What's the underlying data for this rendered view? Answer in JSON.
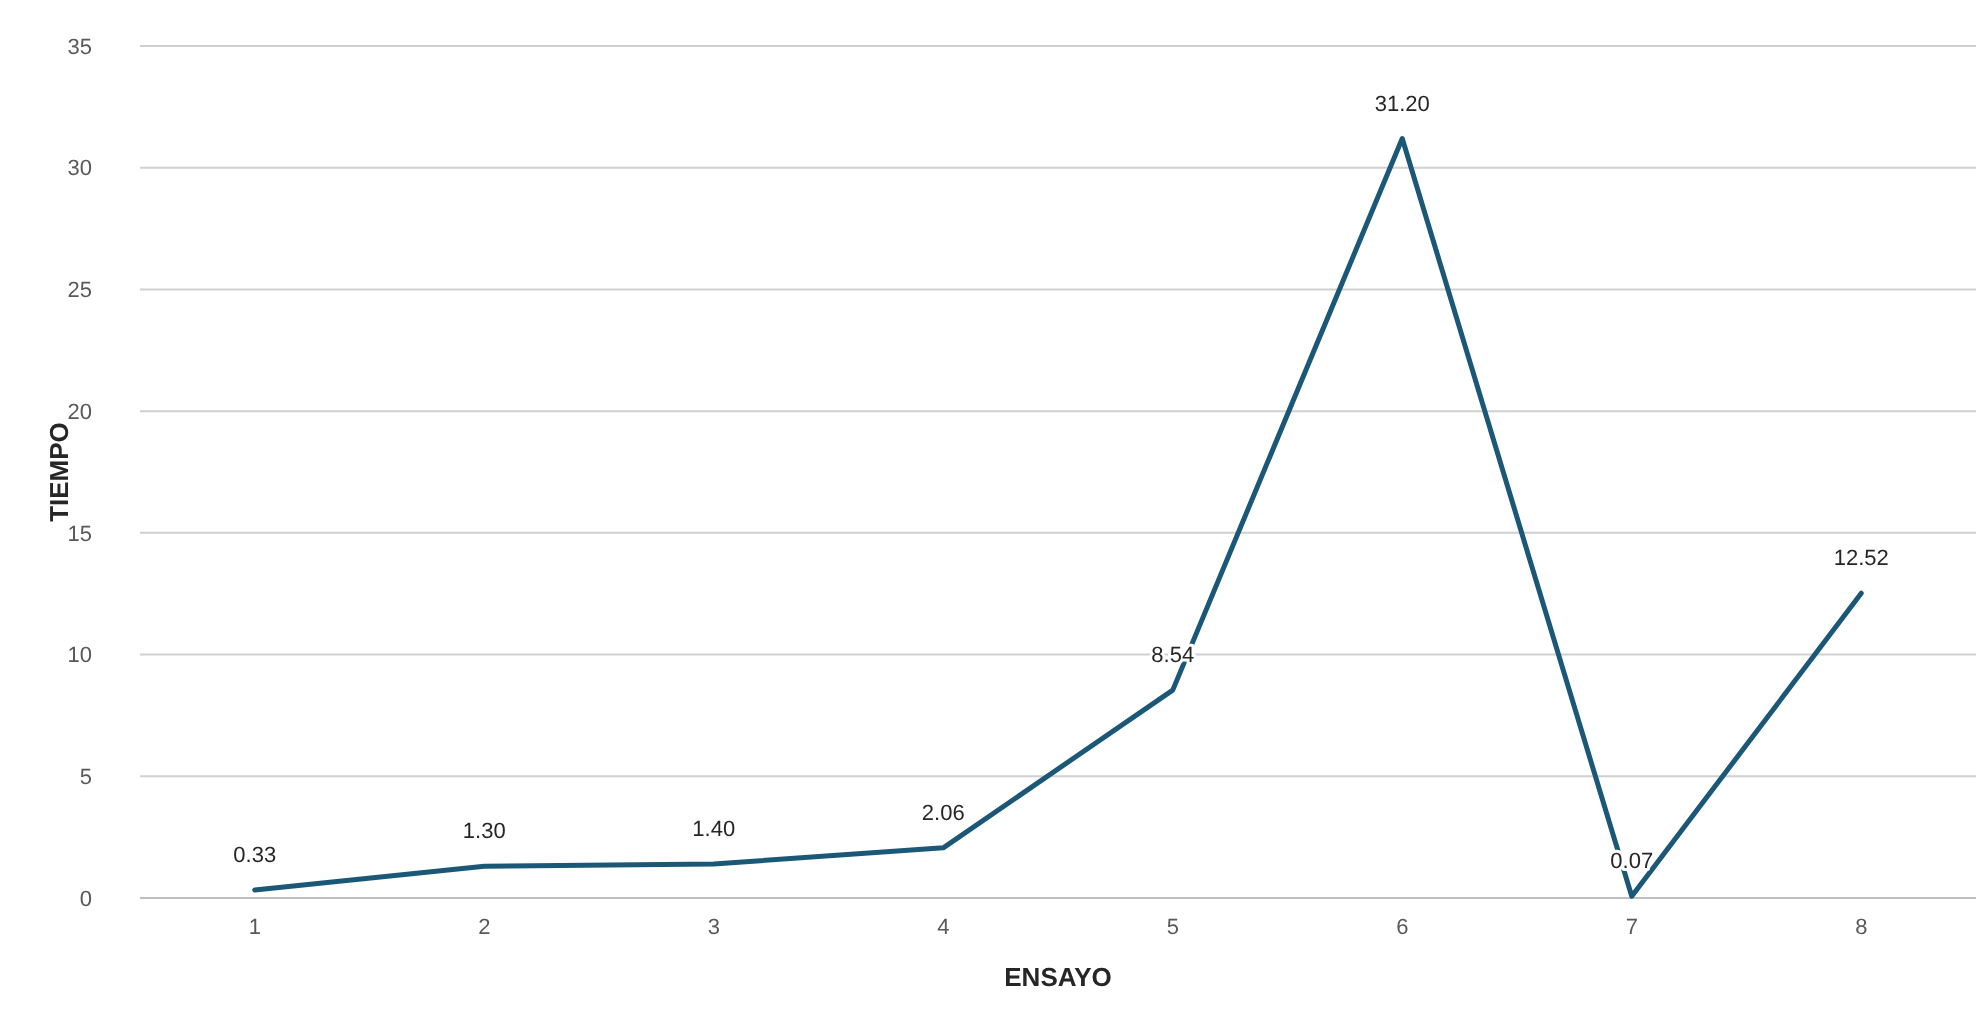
{
  "chart_data": {
    "type": "line",
    "xlabel": "ENSAYO",
    "ylabel": "TIEMPO",
    "categories": [
      "1",
      "2",
      "3",
      "4",
      "5",
      "6",
      "7",
      "8"
    ],
    "series": [
      {
        "color": "#1b5878",
        "values": [
          0.33,
          1.3,
          1.4,
          2.06,
          8.54,
          31.2,
          0.07,
          12.52
        ],
        "value_labels": [
          "0.33",
          "1.30",
          "1.40",
          "2.06",
          "8.54",
          "31.20",
          "0.07",
          "12.52"
        ]
      }
    ],
    "ylim": [
      0,
      35
    ],
    "yticks": [
      0,
      5,
      10,
      15,
      20,
      25,
      30,
      35
    ],
    "grid": "y",
    "marker": "none",
    "line_style": "solid"
  }
}
